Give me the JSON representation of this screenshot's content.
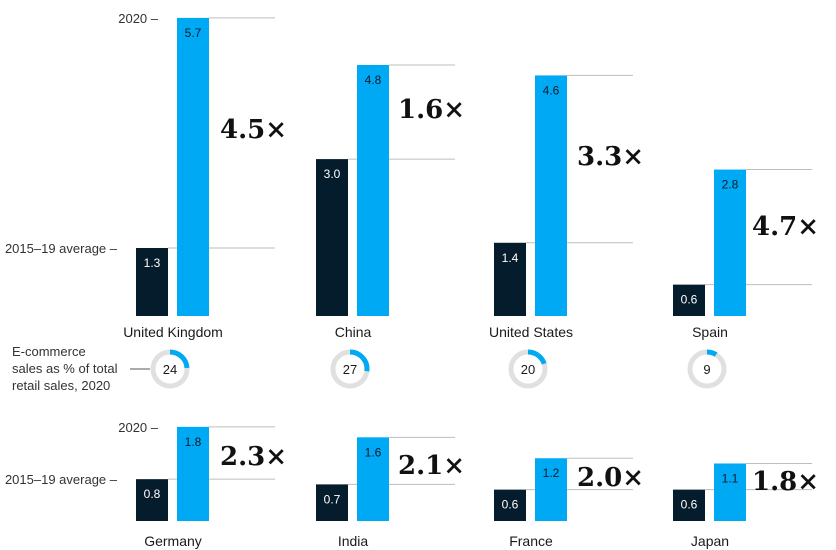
{
  "chart_data": {
    "type": "bar",
    "title": "",
    "series": [
      {
        "name": "2015–19 average",
        "color": "#051c2c"
      },
      {
        "name": "2020",
        "color": "#00a9f4"
      }
    ],
    "legend_labels": {
      "recent": "2020",
      "average": "2015–19 average"
    },
    "donut_caption": [
      "E-commerce",
      "sales as % of total",
      "retail sales, 2020"
    ],
    "countries": [
      {
        "name": "United Kingdom",
        "avg": 1.3,
        "y2020": 5.7,
        "multiplier": "4.5×",
        "ecommerce_share": 24
      },
      {
        "name": "China",
        "avg": 3.0,
        "y2020": 4.8,
        "multiplier": "1.6×",
        "ecommerce_share": 27
      },
      {
        "name": "United States",
        "avg": 1.4,
        "y2020": 4.6,
        "multiplier": "3.3×",
        "ecommerce_share": 20
      },
      {
        "name": "Spain",
        "avg": 0.6,
        "y2020": 2.8,
        "multiplier": "4.7×",
        "ecommerce_share": 9
      },
      {
        "name": "Germany",
        "avg": 0.8,
        "y2020": 1.8,
        "multiplier": "2.3×"
      },
      {
        "name": "India",
        "avg": 0.7,
        "y2020": 1.6,
        "multiplier": "2.1×"
      },
      {
        "name": "France",
        "avg": 0.6,
        "y2020": 1.2,
        "multiplier": "2.0×"
      },
      {
        "name": "Japan",
        "avg": 0.6,
        "y2020": 1.1,
        "multiplier": "1.8×"
      }
    ],
    "colors": {
      "average": "#051c2c",
      "recent": "#00a9f4",
      "donut_track": "#e0e0e0",
      "gridline": "#bdbdbd"
    }
  }
}
